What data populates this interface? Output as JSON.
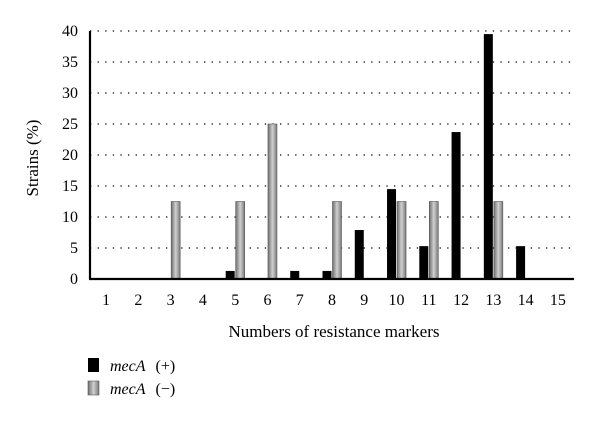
{
  "chart_data": {
    "type": "bar",
    "title": "",
    "xlabel": "Numbers of resistance markers",
    "ylabel": "Strains (%)",
    "ylim": [
      0,
      40
    ],
    "yticks": [
      "0",
      "5",
      "10",
      "15",
      "20",
      "25",
      "30",
      "35",
      "40"
    ],
    "categories": [
      "1",
      "2",
      "3",
      "4",
      "5",
      "6",
      "7",
      "8",
      "9",
      "10",
      "11",
      "12",
      "13",
      "14",
      "15"
    ],
    "grid": "horizontal dotted",
    "legend_position": "bottom-left",
    "series": [
      {
        "name_italic": "mecA",
        "name_suffix": "(+)",
        "color": "#000000",
        "values": [
          0,
          0,
          0,
          0,
          1.3,
          0,
          1.3,
          1.3,
          7.9,
          14.5,
          5.3,
          23.7,
          39.5,
          5.3,
          0
        ]
      },
      {
        "name_italic": "mecA",
        "name_suffix": "(−)",
        "color": "#9a9a9a",
        "values": [
          0,
          0,
          12.5,
          0,
          12.5,
          25,
          0,
          12.5,
          0,
          12.5,
          12.5,
          0,
          12.5,
          0,
          0
        ]
      }
    ]
  }
}
